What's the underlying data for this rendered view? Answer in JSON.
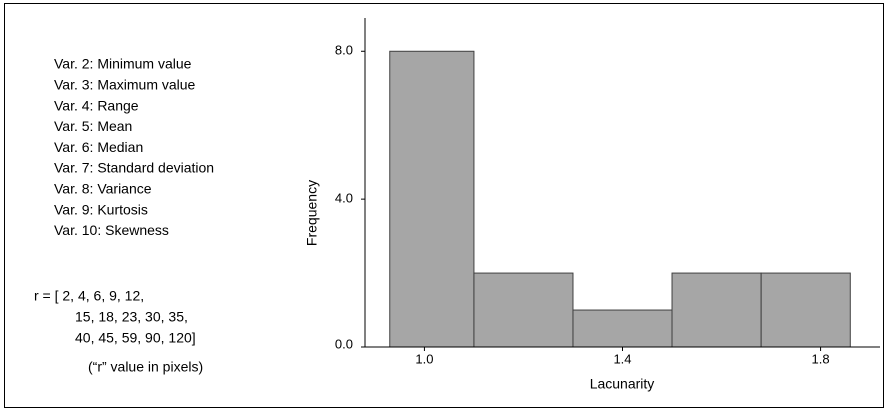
{
  "chart_data": {
    "type": "histogram",
    "annotations": [
      "Var. 2: Minimum value",
      "Var. 3: Maximum value",
      "Var. 4: Range",
      "Var. 5: Mean",
      "Var. 6: Median",
      "Var. 7: Standard deviation",
      "Var. 8: Variance",
      "Var. 9: Kurtosis",
      "Var. 10: Skewness"
    ],
    "notes": [
      "r = [ 2,  4,  6,  9, 12,",
      "15, 18, 23, 30, 35,",
      "40, 45, 59, 90, 120]",
      "(“r” value in pixels)"
    ],
    "x_label": "Lacunarity",
    "y_label": "Frequency",
    "bins": [
      0.93,
      1.1,
      1.3,
      1.5,
      1.68,
      1.86
    ],
    "counts": [
      8,
      2,
      1,
      2,
      2
    ],
    "color": "#a6a6a6",
    "xlim": [
      0.88,
      1.92
    ],
    "ylim": [
      0,
      8.9
    ],
    "xticks": [
      {
        "value": 1.0,
        "label": "1.0"
      },
      {
        "value": 1.4,
        "label": "1.4"
      },
      {
        "value": 1.8,
        "label": "1.8"
      }
    ],
    "yticks": [
      {
        "value": 0,
        "label": "0.0"
      },
      {
        "value": 4,
        "label": "4.0"
      },
      {
        "value": 8,
        "label": "8.0"
      }
    ]
  }
}
